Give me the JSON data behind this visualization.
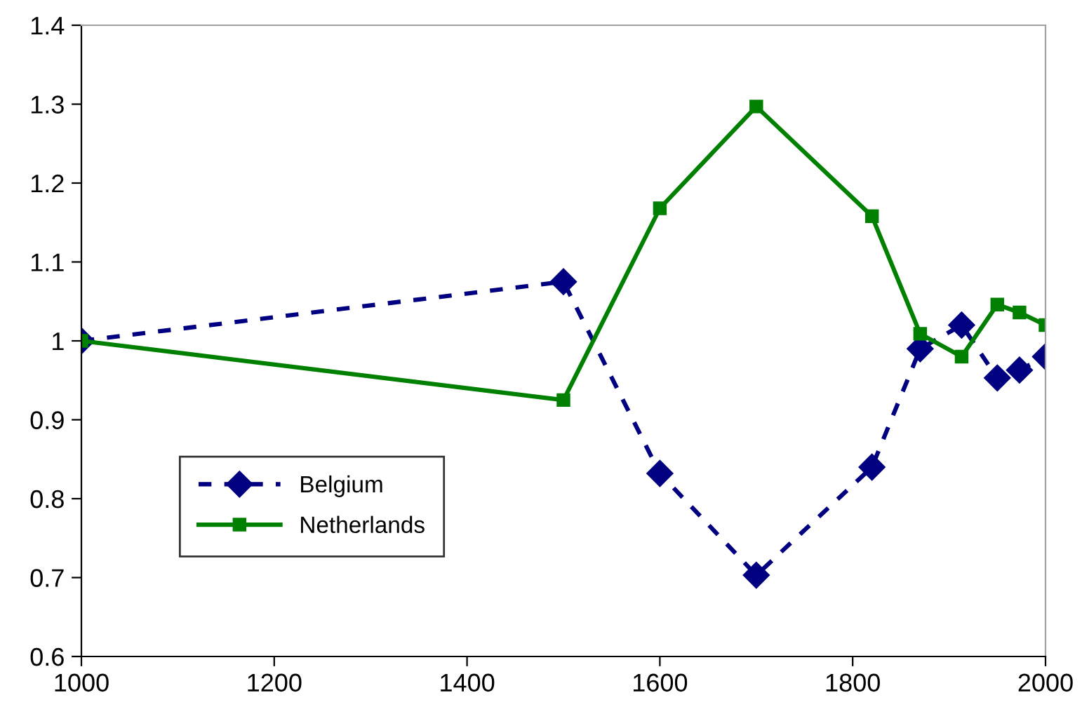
{
  "chart_data": {
    "type": "line",
    "series": [
      {
        "name": "Belgium",
        "color": "#000080",
        "marker": "diamond",
        "line_style": "dashed",
        "x": [
          1000,
          1500,
          1600,
          1700,
          1820,
          1870,
          1913,
          1950,
          1973,
          2000
        ],
        "values": [
          1.0,
          1.075,
          0.832,
          0.703,
          0.84,
          0.99,
          1.02,
          0.953,
          0.963,
          0.98
        ]
      },
      {
        "name": "Netherlands",
        "color": "#008000",
        "marker": "square",
        "line_style": "solid",
        "x": [
          1000,
          1500,
          1600,
          1700,
          1820,
          1870,
          1913,
          1950,
          1973,
          2000
        ],
        "values": [
          1.0,
          0.925,
          1.168,
          1.297,
          1.158,
          1.009,
          0.98,
          1.046,
          1.036,
          1.02
        ]
      }
    ],
    "xlim": [
      1000,
      2000
    ],
    "xticks": [
      1000,
      1200,
      1400,
      1600,
      1800,
      2000
    ],
    "ylim": [
      0.6,
      1.4
    ],
    "yticks": [
      {
        "value": 0.6,
        "label": "0.6"
      },
      {
        "value": 0.7,
        "label": "0.7"
      },
      {
        "value": 0.8,
        "label": "0.8"
      },
      {
        "value": 0.9,
        "label": "0.9"
      },
      {
        "value": 1.0,
        "label": "1"
      },
      {
        "value": 1.1,
        "label": "1.1"
      },
      {
        "value": 1.2,
        "label": "1.2"
      },
      {
        "value": 1.3,
        "label": "1.3"
      },
      {
        "value": 1.4,
        "label": "1.4"
      }
    ],
    "grid": false,
    "legend": "bottom left"
  }
}
